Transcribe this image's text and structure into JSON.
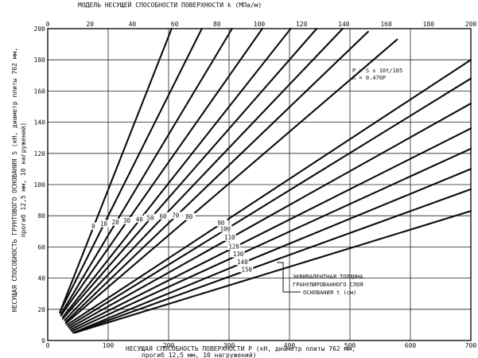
{
  "chart_data": {
    "type": "line",
    "top_axis": {
      "label": "МОДЕЛЬ НЕСУЩЕЙ СПОСОБНОСТИ ПОВЕРХНОСТИ k  (МПа/м)",
      "ticks": [
        "0",
        "20",
        "40",
        "60",
        "80",
        "100",
        "120",
        "140",
        "160",
        "180",
        "200"
      ],
      "range": [
        0,
        200
      ]
    },
    "x_axis": {
      "label_line1": "НЕСУЩАЯ СПОСОБНОСТЬ ПОВЕРХНОСТИ P (кН, диаметр плиты 762 мм,",
      "label_line2": "прогиб 12,5 мм, 10 нагружений)",
      "ticks": [
        "0",
        "100",
        "200",
        "300",
        "400",
        "500",
        "600",
        "700"
      ],
      "range": [
        0,
        700
      ]
    },
    "y_axis": {
      "label_line1": "НЕСУЩАЯ СПОСОБНОСТЬ ГРУНТОВОГО ОСНОВАНИЯ S (кН, диаметр плиты 762 мм,",
      "label_line2": "прогиб 12,5 мм, 10 нагружений)",
      "ticks": [
        "0",
        "20",
        "40",
        "60",
        "80",
        "100",
        "120",
        "140",
        "160",
        "180",
        "200"
      ],
      "range": [
        0,
        200
      ]
    },
    "grid": true,
    "formula": {
      "line1": "P = S x 10t/165",
      "line2": "K = 0.476P"
    },
    "annotation": {
      "line1": "ЭКВИВАЛЕНТНАЯ ТОЛЩИНА",
      "line2": "ГРАНУЛИРОВАННОГО СЛОЯ",
      "line3": "ОСНОВАНИЯ t (см)"
    },
    "series": [
      {
        "name": "0",
        "x": [
          20,
          205
        ],
        "y": [
          18,
          200
        ]
      },
      {
        "name": "10",
        "x": [
          20,
          255
        ],
        "y": [
          18,
          200
        ]
      },
      {
        "name": "20",
        "x": [
          22,
          305
        ],
        "y": [
          17,
          200
        ]
      },
      {
        "name": "30",
        "x": [
          22,
          355
        ],
        "y": [
          16,
          200
        ]
      },
      {
        "name": "40",
        "x": [
          25,
          402
        ],
        "y": [
          15,
          200
        ]
      },
      {
        "name": "50",
        "x": [
          25,
          445
        ],
        "y": [
          14,
          200
        ]
      },
      {
        "name": "60",
        "x": [
          28,
          488
        ],
        "y": [
          13,
          200
        ]
      },
      {
        "name": "70",
        "x": [
          30,
          530
        ],
        "y": [
          12,
          198
        ]
      },
      {
        "name": "80",
        "x": [
          30,
          578
        ],
        "y": [
          11,
          193
        ]
      },
      {
        "name": "90",
        "x": [
          32,
          700
        ],
        "y": [
          10,
          180
        ]
      },
      {
        "name": "100",
        "x": [
          34,
          700
        ],
        "y": [
          9,
          168
        ]
      },
      {
        "name": "110",
        "x": [
          36,
          700
        ],
        "y": [
          8,
          152
        ]
      },
      {
        "name": "120",
        "x": [
          38,
          700
        ],
        "y": [
          7,
          136
        ]
      },
      {
        "name": "130",
        "x": [
          40,
          700
        ],
        "y": [
          6,
          123
        ]
      },
      {
        "name": "140",
        "x": [
          42,
          700
        ],
        "y": [
          5,
          110
        ]
      },
      {
        "name": "150",
        "x": [
          44,
          700
        ],
        "y": [
          5,
          97
        ]
      },
      {
        "name": "",
        "x": [
          45,
          700
        ],
        "y": [
          5,
          83
        ]
      }
    ]
  }
}
